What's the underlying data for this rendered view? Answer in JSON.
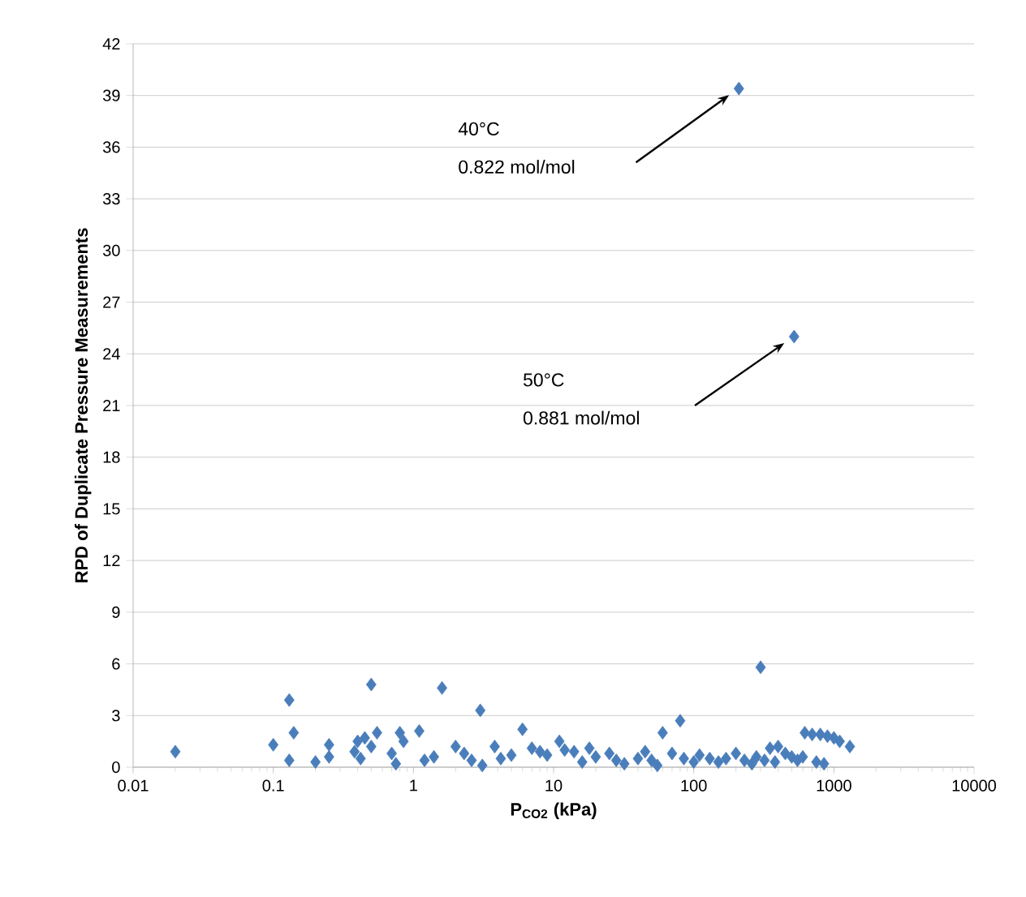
{
  "chart_data": {
    "type": "scatter",
    "xlabel": "P$_{CO2}$ (kPa)",
    "ylabel": "RPD of Duplicate Pressure Measurements",
    "log": "x",
    "grid": "y",
    "marker": "diamond",
    "xlim": [
      0.01,
      10000
    ],
    "xticks": [
      0.01,
      0.1,
      1,
      10,
      100,
      1000,
      10000
    ],
    "ylim": [
      0,
      42
    ],
    "yticks": [
      0,
      3,
      6,
      9,
      12,
      15,
      18,
      21,
      24,
      27,
      30,
      33,
      36,
      39,
      42
    ],
    "annotations": [
      "40°C",
      "0.822 mol/mol",
      "50°C",
      "0.881 mol/mol"
    ],
    "series": [
      {
        "color": "#4a7ebb",
        "x": [
          0.02,
          0.1,
          0.13,
          0.13,
          0.14,
          0.2,
          0.25,
          0.25,
          0.38,
          0.4,
          0.42,
          0.45,
          0.5,
          0.5,
          0.55,
          0.7,
          0.75,
          0.8,
          0.85,
          1.1,
          1.2,
          1.4,
          1.6,
          2,
          2.3,
          2.6,
          3,
          3.1,
          3.8,
          4.2,
          5,
          6,
          7,
          8,
          9,
          11,
          12,
          14,
          16,
          18,
          20,
          25,
          28,
          32,
          40,
          45,
          50,
          55,
          60,
          70,
          80,
          85,
          100,
          110,
          130,
          150,
          170,
          200,
          210,
          230,
          260,
          280,
          300,
          320,
          350,
          380,
          400,
          450,
          500,
          520,
          550,
          600,
          620,
          700,
          750,
          800,
          850,
          900,
          1000,
          1100,
          1300
        ],
        "values": [
          0.9,
          1.3,
          3.9,
          0.4,
          2.0,
          0.3,
          1.3,
          0.6,
          0.9,
          1.5,
          0.5,
          1.7,
          4.8,
          1.2,
          2.0,
          0.8,
          0.2,
          2.0,
          1.5,
          2.1,
          0.4,
          0.6,
          4.6,
          1.2,
          0.8,
          0.4,
          3.3,
          0.1,
          1.2,
          0.5,
          0.7,
          2.2,
          1.1,
          0.9,
          0.7,
          1.5,
          1.0,
          0.9,
          0.3,
          1.1,
          0.6,
          0.8,
          0.4,
          0.2,
          0.5,
          0.9,
          0.4,
          0.1,
          2.0,
          0.8,
          2.7,
          0.5,
          0.3,
          0.7,
          0.5,
          0.3,
          0.5,
          0.8,
          39.4,
          0.4,
          0.2,
          0.6,
          5.8,
          0.4,
          1.1,
          0.3,
          1.2,
          0.8,
          0.6,
          25.0,
          0.4,
          0.6,
          2.0,
          1.9,
          0.3,
          1.9,
          0.2,
          1.8,
          1.7,
          1.5,
          1.2
        ]
      }
    ]
  }
}
